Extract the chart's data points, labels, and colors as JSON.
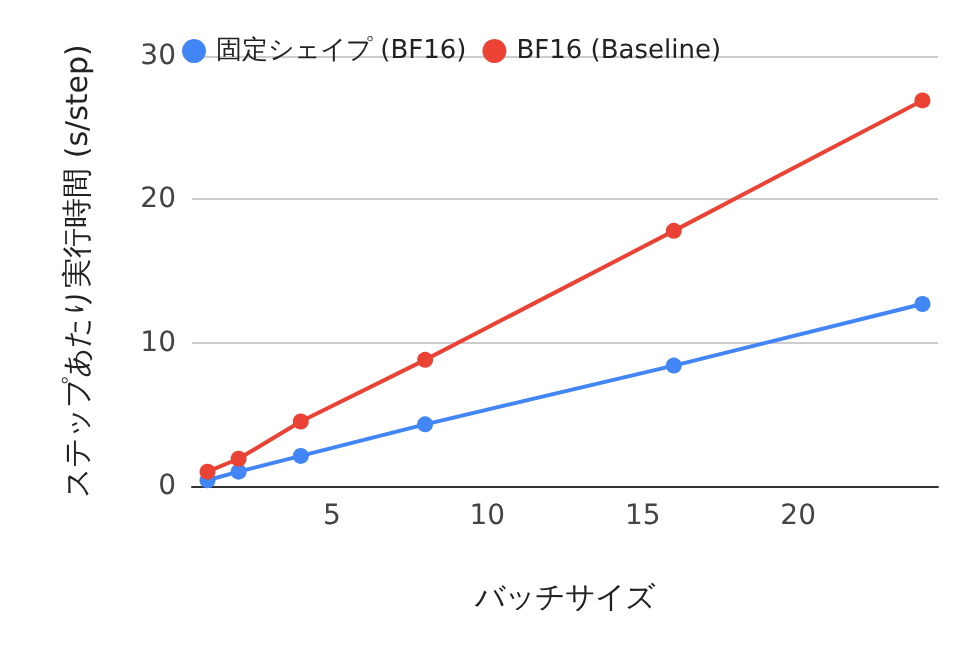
{
  "chart_data": {
    "type": "line",
    "xlabel": "バッチサイズ",
    "ylabel": "ステップあたり実行時間 (s/step)",
    "x": [
      1,
      2,
      4,
      8,
      16,
      24
    ],
    "series": [
      {
        "name": "固定シェイプ (BF16)",
        "color": "#4285f4",
        "values": [
          0.4,
          1.0,
          2.1,
          4.3,
          8.4,
          12.7
        ]
      },
      {
        "name": "BF16 (Baseline)",
        "color": "#ea4335",
        "values": [
          1.0,
          1.9,
          4.5,
          8.8,
          17.8,
          26.9
        ]
      }
    ],
    "xlim": [
      0.5,
      24.5
    ],
    "xticks": [
      5,
      10,
      15,
      20
    ],
    "ylim": [
      0,
      30
    ],
    "yticks": [
      0,
      10,
      20,
      30
    ],
    "grid": "y",
    "legend": "top left",
    "marker": "circle",
    "line_style": "solid"
  }
}
